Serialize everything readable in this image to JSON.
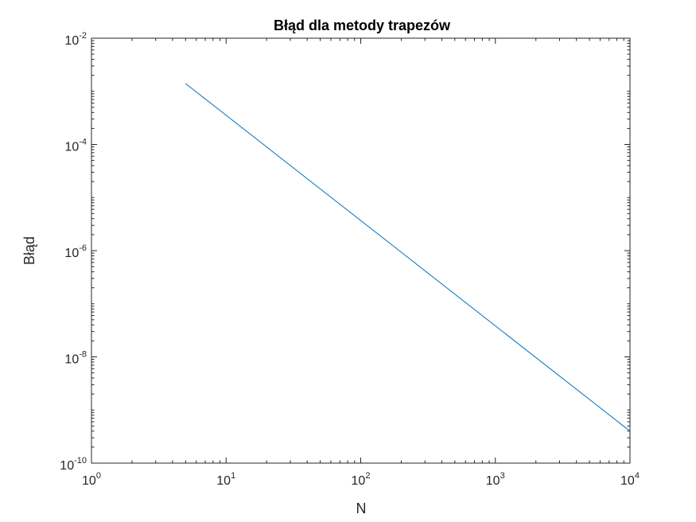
{
  "chart_data": {
    "type": "line",
    "title": "Błąd dla metody trapezów",
    "xlabel": "N",
    "ylabel": "Błąd",
    "xscale": "log",
    "yscale": "log",
    "xlim": [
      1,
      10000
    ],
    "ylim": [
      1e-10,
      0.01
    ],
    "x_tick_labels": [
      {
        "base": "10",
        "exp": "0"
      },
      {
        "base": "10",
        "exp": "1"
      },
      {
        "base": "10",
        "exp": "2"
      },
      {
        "base": "10",
        "exp": "3"
      },
      {
        "base": "10",
        "exp": "4"
      }
    ],
    "y_tick_labels": [
      {
        "base": "10",
        "exp": "-10"
      },
      {
        "base": "10",
        "exp": "-8"
      },
      {
        "base": "10",
        "exp": "-6"
      },
      {
        "base": "10",
        "exp": "-4"
      },
      {
        "base": "10",
        "exp": "-2"
      }
    ],
    "grid": false,
    "box": true,
    "series": [
      {
        "color": "#0072BD",
        "x": [
          5,
          10000
        ],
        "y": [
          0.0014,
          4e-10
        ]
      }
    ]
  }
}
